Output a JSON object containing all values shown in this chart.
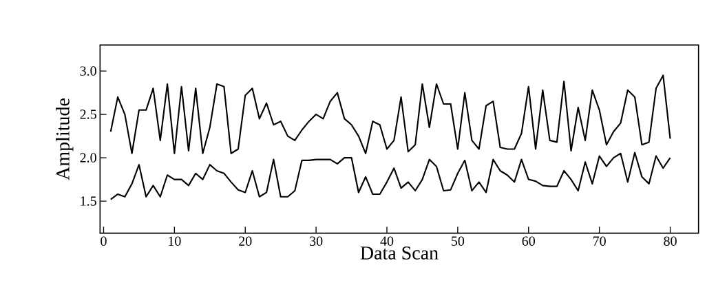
{
  "chart_data": {
    "type": "line",
    "xlabel": "Data Scan",
    "ylabel": "Amplitude",
    "x": [
      1,
      2,
      3,
      4,
      5,
      6,
      7,
      8,
      9,
      10,
      11,
      12,
      13,
      14,
      15,
      16,
      17,
      18,
      19,
      20,
      21,
      22,
      23,
      24,
      25,
      26,
      27,
      28,
      29,
      30,
      31,
      32,
      33,
      34,
      35,
      36,
      37,
      38,
      39,
      40,
      41,
      42,
      43,
      44,
      45,
      46,
      47,
      48,
      49,
      50,
      51,
      52,
      53,
      54,
      55,
      56,
      57,
      58,
      59,
      60,
      61,
      62,
      63,
      64,
      65,
      66,
      67,
      68,
      69,
      70,
      71,
      72,
      73,
      74,
      75,
      76,
      77,
      78,
      79,
      80
    ],
    "series": [
      {
        "color": "#000000",
        "values": [
          2.3,
          2.7,
          2.5,
          2.05,
          2.55,
          2.55,
          2.8,
          2.2,
          2.85,
          2.05,
          2.82,
          2.08,
          2.8,
          2.05,
          2.35,
          2.85,
          2.82,
          2.05,
          2.1,
          2.72,
          2.8,
          2.45,
          2.63,
          2.38,
          2.42,
          2.25,
          2.2,
          2.32,
          2.42,
          2.5,
          2.45,
          2.65,
          2.75,
          2.45,
          2.38,
          2.25,
          2.05,
          2.42,
          2.38,
          2.1,
          2.2,
          2.7,
          2.07,
          2.15,
          2.85,
          2.35,
          2.85,
          2.62,
          2.62,
          2.1,
          2.75,
          2.2,
          2.1,
          2.6,
          2.65,
          2.12,
          2.1,
          2.1,
          2.28,
          2.82,
          2.1,
          2.78,
          2.2,
          2.18,
          2.88,
          2.08,
          2.58,
          2.2,
          2.78,
          2.55,
          2.15,
          2.3,
          2.4,
          2.78,
          2.7,
          2.15,
          2.18,
          2.8,
          2.95,
          2.22
        ]
      },
      {
        "color": "#000000",
        "values": [
          1.52,
          1.58,
          1.55,
          1.7,
          1.92,
          1.55,
          1.68,
          1.55,
          1.8,
          1.75,
          1.75,
          1.68,
          1.82,
          1.75,
          1.92,
          1.85,
          1.82,
          1.72,
          1.63,
          1.6,
          1.85,
          1.55,
          1.6,
          1.98,
          1.55,
          1.55,
          1.62,
          1.97,
          1.97,
          1.98,
          1.98,
          1.98,
          1.93,
          2.0,
          2.0,
          1.6,
          1.78,
          1.58,
          1.58,
          1.72,
          1.88,
          1.65,
          1.72,
          1.62,
          1.75,
          1.98,
          1.9,
          1.62,
          1.63,
          1.82,
          1.97,
          1.62,
          1.72,
          1.6,
          1.98,
          1.85,
          1.8,
          1.72,
          1.98,
          1.75,
          1.73,
          1.68,
          1.67,
          1.67,
          1.85,
          1.75,
          1.62,
          1.95,
          1.7,
          2.02,
          1.9,
          2.0,
          2.05,
          1.72,
          2.06,
          1.78,
          1.7,
          2.02,
          1.88,
          2.0
        ]
      }
    ],
    "xlim": [
      -0.5,
      84
    ],
    "ylim": [
      1.13,
      3.3
    ],
    "xticks": [
      0,
      10,
      20,
      30,
      40,
      50,
      60,
      70,
      80
    ],
    "yticks": [
      1.5,
      {
        "value": 2,
        "label": "2.0"
      },
      2.5,
      {
        "value": 3,
        "label": "3.0"
      }
    ],
    "marker": "none",
    "line_style": "solid"
  }
}
